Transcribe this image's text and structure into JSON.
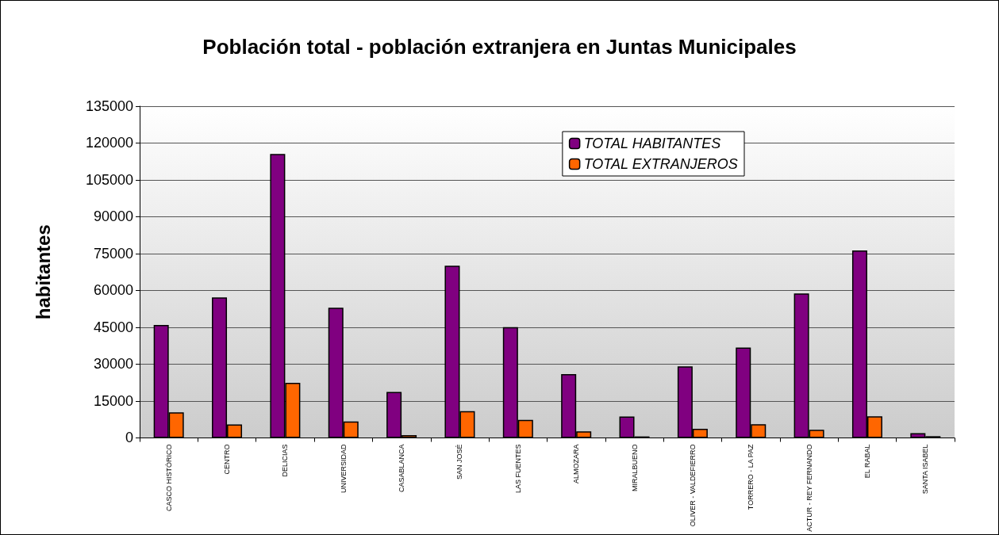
{
  "chart_data": {
    "type": "bar",
    "title": "Población total - población extranjera en Juntas Municipales",
    "ylabel": "habitantes",
    "categories": [
      "CASCO HISTÓRICO",
      "CENTRO",
      "DELICIAS",
      "UNIVERSIDAD",
      "CASABLANCA",
      "SAN JOSÉ",
      "LAS FUENTES",
      "ALMOZARA",
      "MIRALBUENO",
      "OLIVER - VALDEFIERRO",
      "TORRERO - LA PAZ",
      "ACTUR - REY FERNANDO",
      "EL RABAL",
      "SANTA ISABEL"
    ],
    "series": [
      {
        "name": "TOTAL HABITANTES",
        "color": "#800080",
        "values": [
          46000,
          57200,
          115600,
          53000,
          18700,
          70100,
          45100,
          26000,
          8700,
          29100,
          36800,
          58800,
          76300,
          1900
        ]
      },
      {
        "name": "TOTAL EXTRANJEROS",
        "color": "#ff6600",
        "values": [
          10400,
          5500,
          22400,
          6700,
          1100,
          10900,
          7300,
          2700,
          600,
          3700,
          5600,
          3300,
          8800,
          700
        ]
      }
    ],
    "ylim": [
      0,
      135000
    ],
    "yticks": [
      0,
      15000,
      30000,
      45000,
      60000,
      75000,
      90000,
      105000,
      120000,
      135000
    ],
    "grid": "y",
    "legend": "top right"
  }
}
